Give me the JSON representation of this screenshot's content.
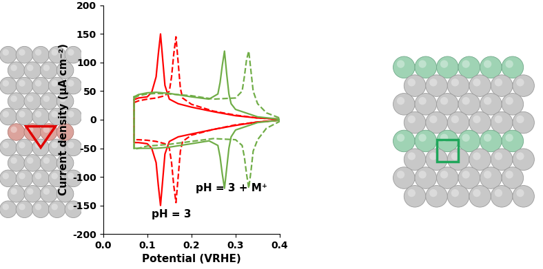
{
  "chart_data": {
    "type": "line",
    "xlabel": "Potential (VRHE)",
    "ylabel": "Current density (µA cm⁻²)",
    "xlim": [
      0.0,
      0.4
    ],
    "ylim": [
      -200,
      200
    ],
    "xticks": [
      0.0,
      0.1,
      0.2,
      0.3,
      0.4
    ],
    "yticks": [
      -200,
      -150,
      -100,
      -50,
      0,
      50,
      100,
      150,
      200
    ],
    "grid": false,
    "annotations": [
      "pH = 3 + M⁺",
      "pH = 3"
    ],
    "series": [
      {
        "color": "#ff0000",
        "line_style": "solid",
        "x": [
          0.07,
          0.08,
          0.1,
          0.11,
          0.12,
          0.125,
          0.13,
          0.135,
          0.14,
          0.15,
          0.17,
          0.2,
          0.25,
          0.3,
          0.35,
          0.4,
          0.4,
          0.35,
          0.3,
          0.25,
          0.2,
          0.17,
          0.15,
          0.14,
          0.135,
          0.13,
          0.125,
          0.12,
          0.11,
          0.1,
          0.08,
          0.07,
          0.07
        ],
        "values": [
          35,
          38,
          40,
          48,
          75,
          115,
          150,
          105,
          60,
          36,
          28,
          22,
          14,
          7,
          3,
          1,
          -1,
          -4,
          -10,
          -17,
          -25,
          -30,
          -38,
          -60,
          -105,
          -150,
          -115,
          -75,
          -50,
          -42,
          -40,
          -40,
          35
        ]
      },
      {
        "color": "#ff0000",
        "line_style": "dashed",
        "x": [
          0.07,
          0.08,
          0.1,
          0.12,
          0.14,
          0.15,
          0.155,
          0.16,
          0.165,
          0.17,
          0.175,
          0.18,
          0.2,
          0.25,
          0.3,
          0.35,
          0.4,
          0.4,
          0.35,
          0.3,
          0.25,
          0.2,
          0.18,
          0.175,
          0.17,
          0.165,
          0.16,
          0.155,
          0.15,
          0.14,
          0.12,
          0.1,
          0.08,
          0.07,
          0.07
        ],
        "values": [
          30,
          33,
          36,
          38,
          42,
          50,
          75,
          115,
          145,
          100,
          55,
          38,
          27,
          15,
          8,
          3,
          1,
          -1,
          -4,
          -9,
          -17,
          -27,
          -38,
          -55,
          -100,
          -145,
          -115,
          -75,
          -50,
          -42,
          -38,
          -36,
          -35,
          -35,
          30
        ]
      },
      {
        "color": "#70ad47",
        "line_style": "solid",
        "x": [
          0.07,
          0.08,
          0.1,
          0.12,
          0.15,
          0.2,
          0.24,
          0.26,
          0.265,
          0.27,
          0.275,
          0.28,
          0.285,
          0.29,
          0.3,
          0.35,
          0.4,
          0.4,
          0.35,
          0.3,
          0.29,
          0.285,
          0.28,
          0.275,
          0.27,
          0.265,
          0.26,
          0.24,
          0.2,
          0.15,
          0.12,
          0.1,
          0.08,
          0.07,
          0.07
        ],
        "values": [
          40,
          44,
          47,
          48,
          46,
          40,
          36,
          45,
          65,
          95,
          120,
          80,
          45,
          28,
          18,
          5,
          1,
          -1,
          -5,
          -18,
          -30,
          -50,
          -85,
          -120,
          -95,
          -65,
          -45,
          -37,
          -42,
          -48,
          -50,
          -50,
          -50,
          -50,
          40
        ]
      },
      {
        "color": "#70ad47",
        "line_style": "dashed",
        "x": [
          0.07,
          0.08,
          0.1,
          0.12,
          0.15,
          0.2,
          0.25,
          0.3,
          0.315,
          0.32,
          0.325,
          0.33,
          0.335,
          0.34,
          0.35,
          0.37,
          0.4,
          0.4,
          0.37,
          0.35,
          0.34,
          0.335,
          0.33,
          0.325,
          0.32,
          0.315,
          0.3,
          0.25,
          0.2,
          0.15,
          0.12,
          0.1,
          0.08,
          0.07,
          0.07
        ],
        "values": [
          38,
          42,
          45,
          46,
          45,
          42,
          36,
          38,
          50,
          75,
          105,
          120,
          85,
          50,
          28,
          12,
          3,
          -3,
          -15,
          -35,
          -55,
          -90,
          -120,
          -95,
          -65,
          -45,
          -35,
          -33,
          -38,
          -43,
          -45,
          -46,
          -50,
          -52,
          38
        ]
      }
    ]
  }
}
